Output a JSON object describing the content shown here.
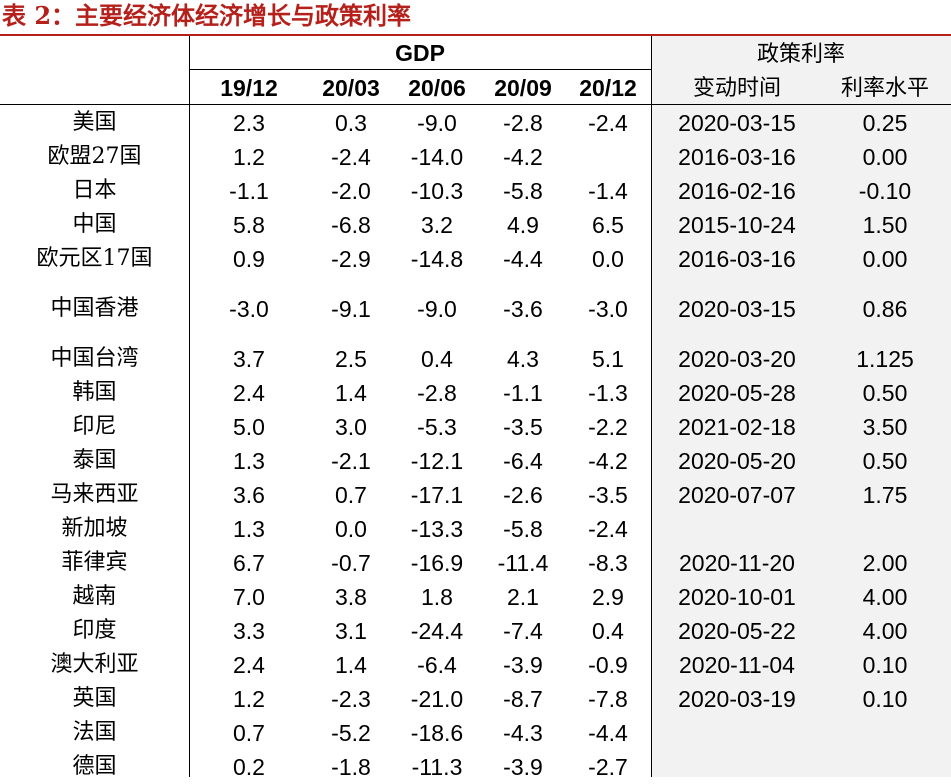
{
  "title": "表 2：主要经济体经济增长与政策利率",
  "header": {
    "gdp": "GDP",
    "policy_rate": "政策利率",
    "quarters": [
      "19/12",
      "20/03",
      "20/06",
      "20/09",
      "20/12"
    ],
    "change_date": "变动时间",
    "rate_level": "利率水平"
  },
  "rows": [
    {
      "name": "美国",
      "gdp": [
        "2.3",
        "0.3",
        "-9.0",
        "-2.8",
        "-2.4"
      ],
      "date": "2020-03-15",
      "rate": "0.25"
    },
    {
      "name": "欧盟27国",
      "gdp": [
        "1.2",
        "-2.4",
        "-14.0",
        "-4.2",
        ""
      ],
      "date": "2016-03-16",
      "rate": "0.00"
    },
    {
      "name": "日本",
      "gdp": [
        "-1.1",
        "-2.0",
        "-10.3",
        "-5.8",
        "-1.4"
      ],
      "date": "2016-02-16",
      "rate": "-0.10"
    },
    {
      "name": "中国",
      "gdp": [
        "5.8",
        "-6.8",
        "3.2",
        "4.9",
        "6.5"
      ],
      "date": "2015-10-24",
      "rate": "1.50"
    },
    {
      "name": "欧元区17国",
      "gdp": [
        "0.9",
        "-2.9",
        "-14.8",
        "-4.4",
        "0.0"
      ],
      "date": "2016-03-16",
      "rate": "0.00"
    },
    {
      "name": "中国香港",
      "gdp": [
        "-3.0",
        "-9.1",
        "-9.0",
        "-3.6",
        "-3.0"
      ],
      "date": "2020-03-15",
      "rate": "0.86"
    },
    {
      "name": "中国台湾",
      "gdp": [
        "3.7",
        "2.5",
        "0.4",
        "4.3",
        "5.1"
      ],
      "date": "2020-03-20",
      "rate": "1.125"
    },
    {
      "name": "韩国",
      "gdp": [
        "2.4",
        "1.4",
        "-2.8",
        "-1.1",
        "-1.3"
      ],
      "date": "2020-05-28",
      "rate": "0.50"
    },
    {
      "name": "印尼",
      "gdp": [
        "5.0",
        "3.0",
        "-5.3",
        "-3.5",
        "-2.2"
      ],
      "date": "2021-02-18",
      "rate": "3.50"
    },
    {
      "name": "泰国",
      "gdp": [
        "1.3",
        "-2.1",
        "-12.1",
        "-6.4",
        "-4.2"
      ],
      "date": "2020-05-20",
      "rate": "0.50"
    },
    {
      "name": "马来西亚",
      "gdp": [
        "3.6",
        "0.7",
        "-17.1",
        "-2.6",
        "-3.5"
      ],
      "date": "2020-07-07",
      "rate": "1.75"
    },
    {
      "name": "新加坡",
      "gdp": [
        "1.3",
        "0.0",
        "-13.3",
        "-5.8",
        "-2.4"
      ],
      "date": "",
      "rate": ""
    },
    {
      "name": "菲律宾",
      "gdp": [
        "6.7",
        "-0.7",
        "-16.9",
        "-11.4",
        "-8.3"
      ],
      "date": "2020-11-20",
      "rate": "2.00"
    },
    {
      "name": "越南",
      "gdp": [
        "7.0",
        "3.8",
        "1.8",
        "2.1",
        "2.9"
      ],
      "date": "2020-10-01",
      "rate": "4.00"
    },
    {
      "name": "印度",
      "gdp": [
        "3.3",
        "3.1",
        "-24.4",
        "-7.4",
        "0.4"
      ],
      "date": "2020-05-22",
      "rate": "4.00"
    },
    {
      "name": "澳大利亚",
      "gdp": [
        "2.4",
        "1.4",
        "-6.4",
        "-3.9",
        "-0.9"
      ],
      "date": "2020-11-04",
      "rate": "0.10"
    },
    {
      "name": "英国",
      "gdp": [
        "1.2",
        "-2.3",
        "-21.0",
        "-8.7",
        "-7.8"
      ],
      "date": "2020-03-19",
      "rate": "0.10"
    },
    {
      "name": "法国",
      "gdp": [
        "0.7",
        "-5.2",
        "-18.6",
        "-4.3",
        "-4.4"
      ],
      "date": "",
      "rate": ""
    },
    {
      "name": "德国",
      "gdp": [
        "0.2",
        "-1.8",
        "-11.3",
        "-3.9",
        "-2.7"
      ],
      "date": "",
      "rate": ""
    }
  ]
}
